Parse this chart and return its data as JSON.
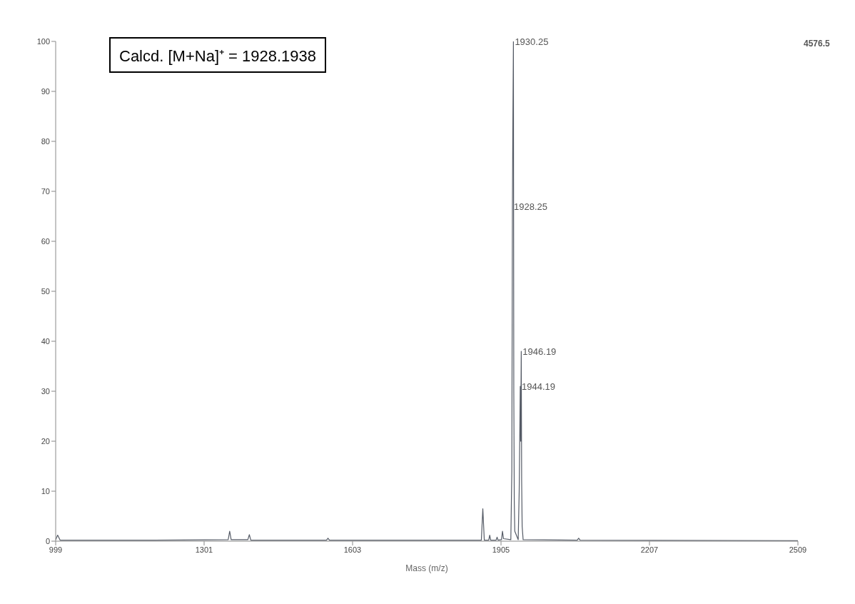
{
  "chart_data": {
    "type": "line",
    "xlabel": "Mass (m/z)",
    "x": [
      999,
      1003,
      1008,
      1200,
      1350,
      1353,
      1356,
      1390,
      1393,
      1396,
      1550,
      1553,
      1556,
      1865,
      1868,
      1871,
      1880,
      1882,
      1884,
      1895,
      1897,
      1899,
      1906,
      1908,
      1910,
      1925,
      1927,
      1928.25,
      1929,
      1930.25,
      1931,
      1932,
      1933,
      1940,
      1942,
      1944.19,
      1945,
      1946.19,
      1947,
      1948,
      1950,
      2060,
      2063,
      2066,
      2509
    ],
    "series": [
      {
        "color": "#555b66",
        "values": [
          0.3,
          1.2,
          0.2,
          0.2,
          0.3,
          2,
          0.3,
          0.3,
          1.3,
          0.2,
          0.2,
          0.6,
          0.2,
          0.2,
          6.5,
          0.2,
          0.2,
          1.2,
          0.2,
          0.2,
          0.8,
          0.2,
          0.3,
          2,
          0.5,
          0.3,
          14,
          67,
          82,
          100,
          30,
          8,
          2,
          0.3,
          10,
          31,
          20,
          38,
          12,
          3,
          0.3,
          0.2,
          0.6,
          0.2,
          0.1
        ]
      }
    ],
    "xlim": [
      999,
      2509
    ],
    "xticks": [
      999,
      1301,
      1603,
      1905,
      2207,
      2509
    ],
    "ylim": [
      0,
      100
    ],
    "yticks": [
      0,
      10,
      20,
      30,
      40,
      50,
      60,
      70,
      80,
      90,
      100
    ],
    "grid": false,
    "legend": false,
    "marker": "none",
    "line_style": "solid",
    "annotations": [
      "Calcd. [M+Na]⁺ = 1928.1938",
      "4576.5",
      {
        "text": "1930.25",
        "x": 1930.25,
        "y": 100
      },
      {
        "text": "1928.25",
        "x": 1928.25,
        "y": 67
      },
      {
        "text": "1946.19",
        "x": 1946.19,
        "y": 38
      },
      {
        "text": "1944.19",
        "x": 1944.19,
        "y": 31
      }
    ]
  }
}
